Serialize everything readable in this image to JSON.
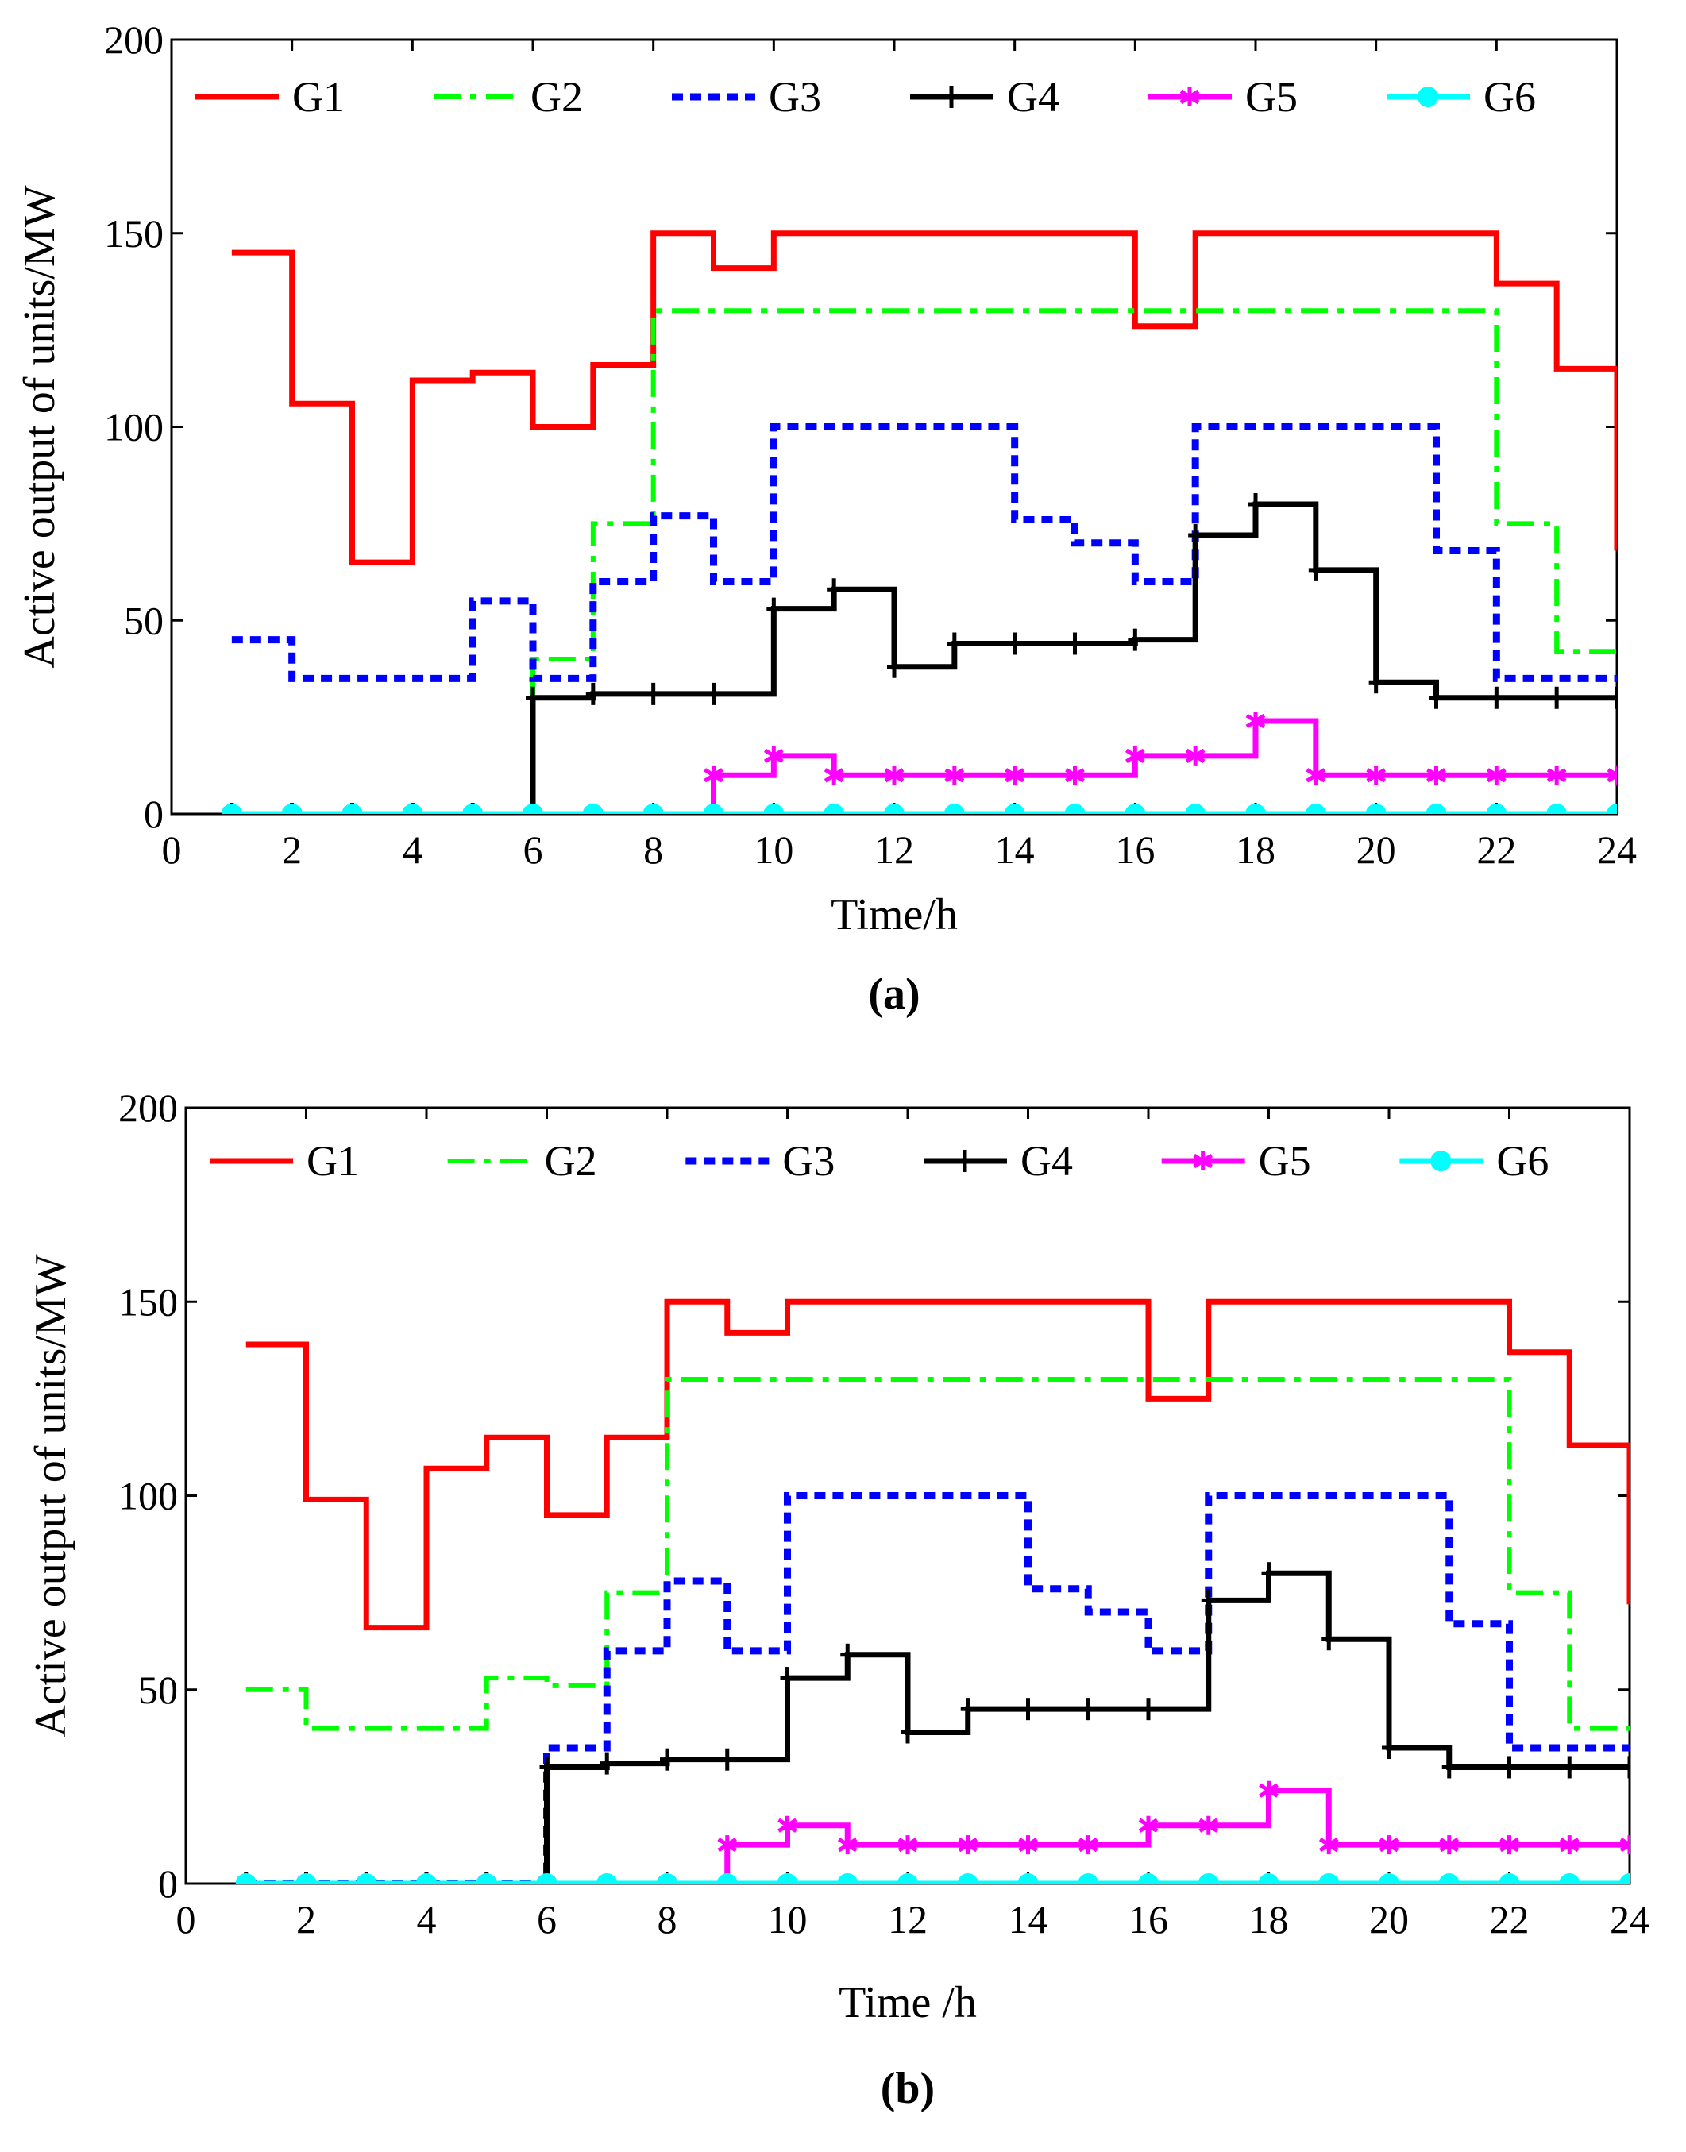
{
  "chart_data": [
    {
      "type": "line",
      "step": true,
      "panel_label": "(a)",
      "title": "",
      "xlabel": "Time/h",
      "ylabel": "Active output of units/MW",
      "xlim": [
        0,
        24
      ],
      "ylim": [
        0,
        200
      ],
      "xticks": [
        0,
        2,
        4,
        6,
        8,
        10,
        12,
        14,
        16,
        18,
        20,
        22,
        24
      ],
      "yticks": [
        0,
        50,
        100,
        150,
        200
      ],
      "legend_position": "top",
      "x": [
        1,
        2,
        3,
        4,
        5,
        6,
        7,
        8,
        9,
        10,
        11,
        12,
        13,
        14,
        15,
        16,
        17,
        18,
        19,
        20,
        21,
        22,
        23,
        24
      ],
      "series": [
        {
          "name": "G1",
          "color": "#ff0000",
          "style": "solid",
          "marker": "none",
          "values": [
            145,
            106,
            65,
            112,
            114,
            100,
            116,
            150,
            141,
            150,
            150,
            150,
            150,
            150,
            150,
            126,
            150,
            150,
            150,
            150,
            150,
            137,
            115,
            68
          ]
        },
        {
          "name": "G2",
          "color": "#00ff00",
          "style": "dashdot",
          "marker": "none",
          "values": [
            0,
            0,
            0,
            0,
            0,
            40,
            75,
            130,
            130,
            130,
            130,
            130,
            130,
            130,
            130,
            130,
            130,
            130,
            130,
            130,
            130,
            75,
            42,
            42
          ]
        },
        {
          "name": "G3",
          "color": "#0000ff",
          "style": "dotted",
          "marker": "none",
          "values": [
            45,
            35,
            35,
            35,
            55,
            35,
            60,
            77,
            60,
            100,
            100,
            100,
            100,
            76,
            70,
            60,
            100,
            100,
            100,
            100,
            68,
            35,
            35,
            35
          ]
        },
        {
          "name": "G4",
          "color": "#000000",
          "style": "solid",
          "marker": "plus",
          "values": [
            0,
            0,
            0,
            0,
            0,
            30,
            31,
            31,
            31,
            53,
            58,
            38,
            44,
            44,
            44,
            45,
            72,
            80,
            63,
            34,
            30,
            30,
            30,
            30
          ]
        },
        {
          "name": "G5",
          "color": "#ff00ff",
          "style": "solid",
          "marker": "star",
          "values": [
            0,
            0,
            0,
            0,
            0,
            0,
            0,
            0,
            10,
            15,
            10,
            10,
            10,
            10,
            10,
            15,
            15,
            24,
            10,
            10,
            10,
            10,
            10,
            10
          ]
        },
        {
          "name": "G6",
          "color": "#00ffff",
          "style": "solid",
          "marker": "circle",
          "values": [
            0,
            0,
            0,
            0,
            0,
            0,
            0,
            0,
            0,
            0,
            0,
            0,
            0,
            0,
            0,
            0,
            0,
            0,
            0,
            0,
            0,
            0,
            0,
            0
          ]
        }
      ]
    },
    {
      "type": "line",
      "step": true,
      "panel_label": "(b)",
      "title": "",
      "xlabel": "Time /h",
      "ylabel": "Active output of units/MW",
      "xlim": [
        0,
        24
      ],
      "ylim": [
        0,
        200
      ],
      "xticks": [
        0,
        2,
        4,
        6,
        8,
        10,
        12,
        14,
        16,
        18,
        20,
        22,
        24
      ],
      "yticks": [
        0,
        50,
        100,
        150,
        200
      ],
      "legend_position": "top",
      "x": [
        1,
        2,
        3,
        4,
        5,
        6,
        7,
        8,
        9,
        10,
        11,
        12,
        13,
        14,
        15,
        16,
        17,
        18,
        19,
        20,
        21,
        22,
        23,
        24
      ],
      "series": [
        {
          "name": "G1",
          "color": "#ff0000",
          "style": "solid",
          "marker": "none",
          "values": [
            139,
            99,
            66,
            107,
            115,
            95,
            115,
            150,
            142,
            150,
            150,
            150,
            150,
            150,
            150,
            125,
            150,
            150,
            150,
            150,
            150,
            137,
            113,
            72
          ]
        },
        {
          "name": "G2",
          "color": "#00ff00",
          "style": "dashdot",
          "marker": "none",
          "values": [
            50,
            40,
            40,
            40,
            53,
            51,
            75,
            130,
            130,
            130,
            130,
            130,
            130,
            130,
            130,
            130,
            130,
            130,
            130,
            130,
            130,
            75,
            40,
            40
          ]
        },
        {
          "name": "G3",
          "color": "#0000ff",
          "style": "dotted",
          "marker": "none",
          "values": [
            0,
            0,
            0,
            0,
            0,
            35,
            60,
            78,
            60,
            100,
            100,
            100,
            100,
            76,
            70,
            60,
            100,
            100,
            100,
            100,
            67,
            35,
            35,
            35
          ]
        },
        {
          "name": "G4",
          "color": "#000000",
          "style": "solid",
          "marker": "plus",
          "values": [
            0,
            0,
            0,
            0,
            0,
            30,
            31,
            32,
            32,
            53,
            59,
            39,
            45,
            45,
            45,
            45,
            73,
            80,
            63,
            35,
            30,
            30,
            30,
            30
          ]
        },
        {
          "name": "G5",
          "color": "#ff00ff",
          "style": "solid",
          "marker": "star",
          "values": [
            0,
            0,
            0,
            0,
            0,
            0,
            0,
            0,
            10,
            15,
            10,
            10,
            10,
            10,
            10,
            15,
            15,
            24,
            10,
            10,
            10,
            10,
            10,
            10
          ]
        },
        {
          "name": "G6",
          "color": "#00ffff",
          "style": "solid",
          "marker": "circle",
          "values": [
            0,
            0,
            0,
            0,
            0,
            0,
            0,
            0,
            0,
            0,
            0,
            0,
            0,
            0,
            0,
            0,
            0,
            0,
            0,
            0,
            0,
            0,
            0,
            0
          ]
        }
      ]
    }
  ]
}
